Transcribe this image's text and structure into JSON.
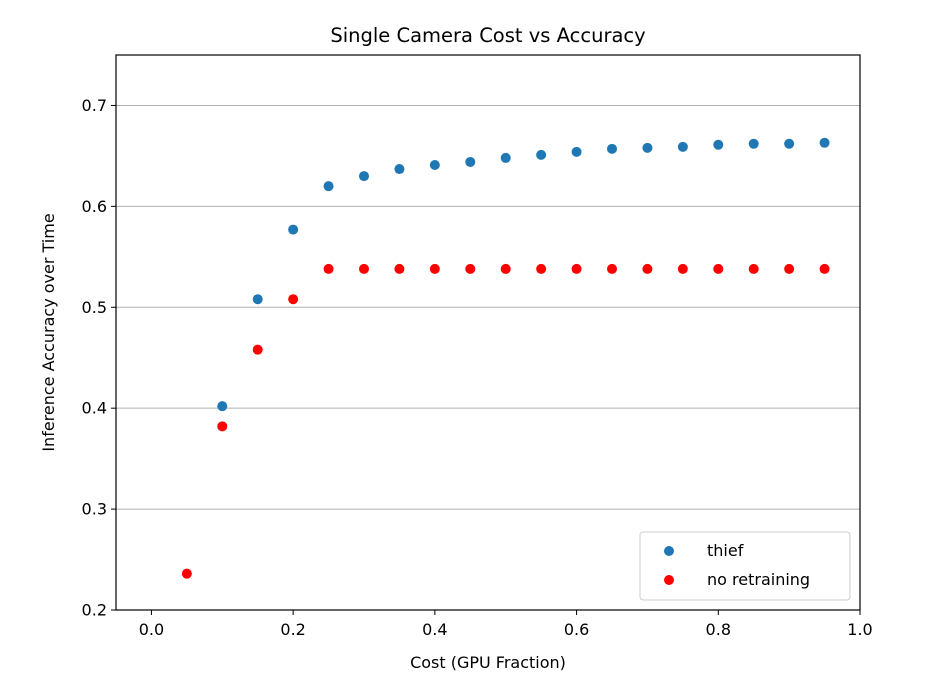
{
  "chart_data": {
    "type": "scatter",
    "title": "Single Camera Cost vs Accuracy",
    "xlabel": "Cost (GPU Fraction)",
    "ylabel": "Inference Accuracy over Time",
    "xlim": [
      -0.05,
      1.0
    ],
    "ylim": [
      0.2,
      0.75
    ],
    "xticks": [
      0.0,
      0.2,
      0.4,
      0.6,
      0.8,
      1.0
    ],
    "xtick_labels": [
      "0.0",
      "0.2",
      "0.4",
      "0.6",
      "0.8",
      "1.0"
    ],
    "yticks": [
      0.2,
      0.3,
      0.4,
      0.5,
      0.6,
      0.7
    ],
    "ytick_labels": [
      "0.2",
      "0.3",
      "0.4",
      "0.5",
      "0.6",
      "0.7"
    ],
    "grid": "horizontal",
    "legend_position": "lower-right",
    "series": [
      {
        "name": "thief",
        "color": "#1f77b4",
        "x": [
          0.1,
          0.15,
          0.2,
          0.25,
          0.3,
          0.35,
          0.4,
          0.45,
          0.5,
          0.55,
          0.6,
          0.65,
          0.7,
          0.75,
          0.8,
          0.85,
          0.9,
          0.95
        ],
        "y": [
          0.402,
          0.508,
          0.577,
          0.62,
          0.63,
          0.637,
          0.641,
          0.644,
          0.648,
          0.651,
          0.654,
          0.657,
          0.658,
          0.659,
          0.661,
          0.662,
          0.662,
          0.663
        ]
      },
      {
        "name": "no retraining",
        "color": "#ff0000",
        "x": [
          0.05,
          0.1,
          0.15,
          0.2,
          0.25,
          0.3,
          0.35,
          0.4,
          0.45,
          0.5,
          0.55,
          0.6,
          0.65,
          0.7,
          0.75,
          0.8,
          0.85,
          0.9,
          0.95
        ],
        "y": [
          0.236,
          0.382,
          0.458,
          0.508,
          0.538,
          0.538,
          0.538,
          0.538,
          0.538,
          0.538,
          0.538,
          0.538,
          0.538,
          0.538,
          0.538,
          0.538,
          0.538,
          0.538,
          0.538
        ]
      }
    ]
  }
}
